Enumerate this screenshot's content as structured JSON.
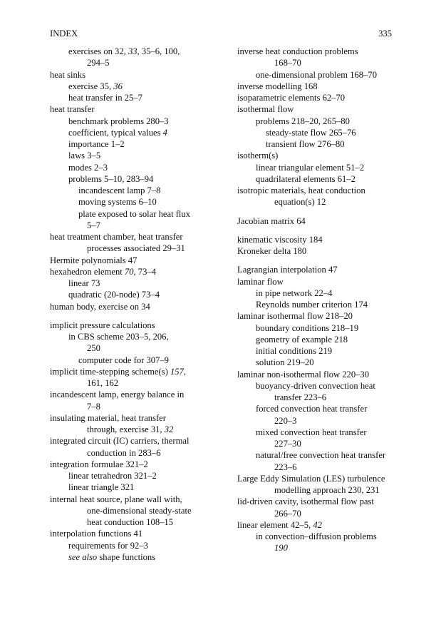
{
  "header": {
    "title": "INDEX",
    "page_number": "335"
  },
  "left_column": [
    {
      "lvl": "sub",
      "seg": [
        [
          "exercises on 32, ",
          0
        ],
        [
          "33",
          1
        ],
        [
          ", 35–6, 100,",
          0
        ]
      ]
    },
    {
      "lvl": "cont",
      "seg": [
        [
          "294–5",
          0
        ]
      ]
    },
    {
      "lvl": "main",
      "seg": [
        [
          "heat sinks",
          0
        ]
      ]
    },
    {
      "lvl": "sub",
      "seg": [
        [
          "exercise 35, ",
          0
        ],
        [
          "36",
          1
        ]
      ]
    },
    {
      "lvl": "sub",
      "seg": [
        [
          "heat transfer in 25–7",
          0
        ]
      ]
    },
    {
      "lvl": "main",
      "seg": [
        [
          "heat transfer",
          0
        ]
      ]
    },
    {
      "lvl": "sub",
      "seg": [
        [
          "benchmark problems 280–3",
          0
        ]
      ]
    },
    {
      "lvl": "sub",
      "seg": [
        [
          "coefficient, typical values ",
          0
        ],
        [
          "4",
          1
        ]
      ]
    },
    {
      "lvl": "sub",
      "seg": [
        [
          "importance 1–2",
          0
        ]
      ]
    },
    {
      "lvl": "sub",
      "seg": [
        [
          "laws 3–5",
          0
        ]
      ]
    },
    {
      "lvl": "sub",
      "seg": [
        [
          "modes 2–3",
          0
        ]
      ]
    },
    {
      "lvl": "sub",
      "seg": [
        [
          "problems 5–10, 283–94",
          0
        ]
      ]
    },
    {
      "lvl": "subsub",
      "seg": [
        [
          "incandescent lamp 7–8",
          0
        ]
      ]
    },
    {
      "lvl": "subsub",
      "seg": [
        [
          "moving systems 6–10",
          0
        ]
      ]
    },
    {
      "lvl": "subsub",
      "seg": [
        [
          "plate exposed to solar heat flux",
          0
        ]
      ]
    },
    {
      "lvl": "cont",
      "seg": [
        [
          "5–7",
          0
        ]
      ]
    },
    {
      "lvl": "main",
      "seg": [
        [
          "heat treatment chamber, heat transfer",
          0
        ]
      ]
    },
    {
      "lvl": "cont",
      "seg": [
        [
          "processes associated 29–31",
          0
        ]
      ]
    },
    {
      "lvl": "main",
      "seg": [
        [
          "Hermite polynomials 47",
          0
        ]
      ]
    },
    {
      "lvl": "main",
      "seg": [
        [
          "hexahedron element ",
          0
        ],
        [
          "70",
          1
        ],
        [
          ", 73–4",
          0
        ]
      ]
    },
    {
      "lvl": "sub",
      "seg": [
        [
          "linear 73",
          0
        ]
      ]
    },
    {
      "lvl": "sub",
      "seg": [
        [
          "quadratic (20-node) 73–4",
          0
        ]
      ]
    },
    {
      "lvl": "main",
      "seg": [
        [
          "human body, exercise on 34",
          0
        ]
      ]
    },
    {
      "gap": true
    },
    {
      "lvl": "main",
      "seg": [
        [
          "implicit pressure calculations",
          0
        ]
      ]
    },
    {
      "lvl": "sub",
      "seg": [
        [
          "in CBS scheme 203–5, 206,",
          0
        ]
      ]
    },
    {
      "lvl": "cont",
      "seg": [
        [
          "250",
          0
        ]
      ]
    },
    {
      "lvl": "subsub",
      "seg": [
        [
          "computer code for 307–9",
          0
        ]
      ]
    },
    {
      "lvl": "main",
      "seg": [
        [
          "implicit time-stepping scheme(s) ",
          0
        ],
        [
          "157",
          1
        ],
        [
          ",",
          0
        ]
      ]
    },
    {
      "lvl": "cont",
      "seg": [
        [
          "161, 162",
          0
        ]
      ]
    },
    {
      "lvl": "main",
      "seg": [
        [
          "incandescent lamp, energy balance in",
          0
        ]
      ]
    },
    {
      "lvl": "cont",
      "seg": [
        [
          "7–8",
          0
        ]
      ]
    },
    {
      "lvl": "main",
      "seg": [
        [
          "insulating material, heat transfer",
          0
        ]
      ]
    },
    {
      "lvl": "cont",
      "seg": [
        [
          "through, exercise 31, ",
          0
        ],
        [
          "32",
          1
        ]
      ]
    },
    {
      "lvl": "main",
      "seg": [
        [
          "integrated circuit (IC) carriers, thermal",
          0
        ]
      ]
    },
    {
      "lvl": "cont",
      "seg": [
        [
          "conduction in 283–6",
          0
        ]
      ]
    },
    {
      "lvl": "main",
      "seg": [
        [
          "integration formulae 321–2",
          0
        ]
      ]
    },
    {
      "lvl": "sub",
      "seg": [
        [
          "linear tetrahedron 321–2",
          0
        ]
      ]
    },
    {
      "lvl": "sub",
      "seg": [
        [
          "linear triangle 321",
          0
        ]
      ]
    },
    {
      "lvl": "main",
      "seg": [
        [
          "internal heat source, plane wall with,",
          0
        ]
      ]
    },
    {
      "lvl": "cont",
      "seg": [
        [
          "one-dimensional steady-state",
          0
        ]
      ]
    },
    {
      "lvl": "cont",
      "seg": [
        [
          "heat conduction 108–15",
          0
        ]
      ]
    },
    {
      "lvl": "main",
      "seg": [
        [
          "interpolation functions 41",
          0
        ]
      ]
    },
    {
      "lvl": "sub",
      "seg": [
        [
          "requirements for 92–3",
          0
        ]
      ]
    },
    {
      "lvl": "sub",
      "seg": [
        [
          "see also",
          1
        ],
        [
          " shape functions",
          0
        ]
      ]
    }
  ],
  "right_column": [
    {
      "lvl": "main",
      "seg": [
        [
          "inverse heat conduction problems",
          0
        ]
      ]
    },
    {
      "lvl": "cont",
      "seg": [
        [
          "168–70",
          0
        ]
      ]
    },
    {
      "lvl": "sub",
      "seg": [
        [
          "one-dimensional problem 168–70",
          0
        ]
      ]
    },
    {
      "lvl": "main",
      "seg": [
        [
          "inverse modelling 168",
          0
        ]
      ]
    },
    {
      "lvl": "main",
      "seg": [
        [
          "isoparametric elements 62–70",
          0
        ]
      ]
    },
    {
      "lvl": "main",
      "seg": [
        [
          "isothermal flow",
          0
        ]
      ]
    },
    {
      "lvl": "sub",
      "seg": [
        [
          "problems 218–20, 265–80",
          0
        ]
      ]
    },
    {
      "lvl": "subsub",
      "seg": [
        [
          "steady-state flow 265–76",
          0
        ]
      ]
    },
    {
      "lvl": "subsub",
      "seg": [
        [
          "transient flow 276–80",
          0
        ]
      ]
    },
    {
      "lvl": "main",
      "seg": [
        [
          "isotherm(s)",
          0
        ]
      ]
    },
    {
      "lvl": "sub",
      "seg": [
        [
          "linear triangular element 51–2",
          0
        ]
      ]
    },
    {
      "lvl": "sub",
      "seg": [
        [
          "quadrilateral elements 61–2",
          0
        ]
      ]
    },
    {
      "lvl": "main",
      "seg": [
        [
          "isotropic materials, heat conduction",
          0
        ]
      ]
    },
    {
      "lvl": "cont",
      "seg": [
        [
          "equation(s) 12",
          0
        ]
      ]
    },
    {
      "gap": true
    },
    {
      "lvl": "main",
      "seg": [
        [
          "Jacobian matrix 64",
          0
        ]
      ]
    },
    {
      "gap": true
    },
    {
      "lvl": "main",
      "seg": [
        [
          "kinematic viscosity 184",
          0
        ]
      ]
    },
    {
      "lvl": "main",
      "seg": [
        [
          "Kroneker delta 180",
          0
        ]
      ]
    },
    {
      "gap": true
    },
    {
      "lvl": "main",
      "seg": [
        [
          "Lagrangian interpolation 47",
          0
        ]
      ]
    },
    {
      "lvl": "main",
      "seg": [
        [
          "laminar flow",
          0
        ]
      ]
    },
    {
      "lvl": "sub",
      "seg": [
        [
          "in pipe network 22–4",
          0
        ]
      ]
    },
    {
      "lvl": "sub",
      "seg": [
        [
          "Reynolds number criterion 174",
          0
        ]
      ]
    },
    {
      "lvl": "main",
      "seg": [
        [
          "laminar isothermal flow 218–20",
          0
        ]
      ]
    },
    {
      "lvl": "sub",
      "seg": [
        [
          "boundary conditions 218–19",
          0
        ]
      ]
    },
    {
      "lvl": "sub",
      "seg": [
        [
          "geometry of example 218",
          0
        ]
      ]
    },
    {
      "lvl": "sub",
      "seg": [
        [
          "initial conditions 219",
          0
        ]
      ]
    },
    {
      "lvl": "sub",
      "seg": [
        [
          "solution 219–20",
          0
        ]
      ]
    },
    {
      "lvl": "main",
      "seg": [
        [
          "laminar non-isothermal flow 220–30",
          0
        ]
      ]
    },
    {
      "lvl": "sub",
      "seg": [
        [
          "buoyancy-driven convection heat",
          0
        ]
      ]
    },
    {
      "lvl": "cont",
      "seg": [
        [
          "transfer 223–6",
          0
        ]
      ]
    },
    {
      "lvl": "sub",
      "seg": [
        [
          "forced convection heat transfer",
          0
        ]
      ]
    },
    {
      "lvl": "cont",
      "seg": [
        [
          "220–3",
          0
        ]
      ]
    },
    {
      "lvl": "sub",
      "seg": [
        [
          "mixed convection heat transfer",
          0
        ]
      ]
    },
    {
      "lvl": "cont",
      "seg": [
        [
          "227–30",
          0
        ]
      ]
    },
    {
      "lvl": "sub",
      "seg": [
        [
          "natural/free convection heat transfer",
          0
        ]
      ]
    },
    {
      "lvl": "cont",
      "seg": [
        [
          "223–6",
          0
        ]
      ]
    },
    {
      "lvl": "main",
      "seg": [
        [
          "Large Eddy Simulation (LES) turbulence",
          0
        ]
      ]
    },
    {
      "lvl": "cont",
      "seg": [
        [
          "modelling approach 230, 231",
          0
        ]
      ]
    },
    {
      "lvl": "main",
      "seg": [
        [
          "lid-driven cavity, isothermal flow past",
          0
        ]
      ]
    },
    {
      "lvl": "cont",
      "seg": [
        [
          "266–70",
          0
        ]
      ]
    },
    {
      "lvl": "main",
      "seg": [
        [
          "linear element 42–5, ",
          0
        ],
        [
          "42",
          1
        ]
      ]
    },
    {
      "lvl": "sub",
      "seg": [
        [
          "in convection–diffusion problems",
          0
        ]
      ]
    },
    {
      "lvl": "cont",
      "seg": [
        [
          "190",
          1
        ]
      ]
    }
  ]
}
